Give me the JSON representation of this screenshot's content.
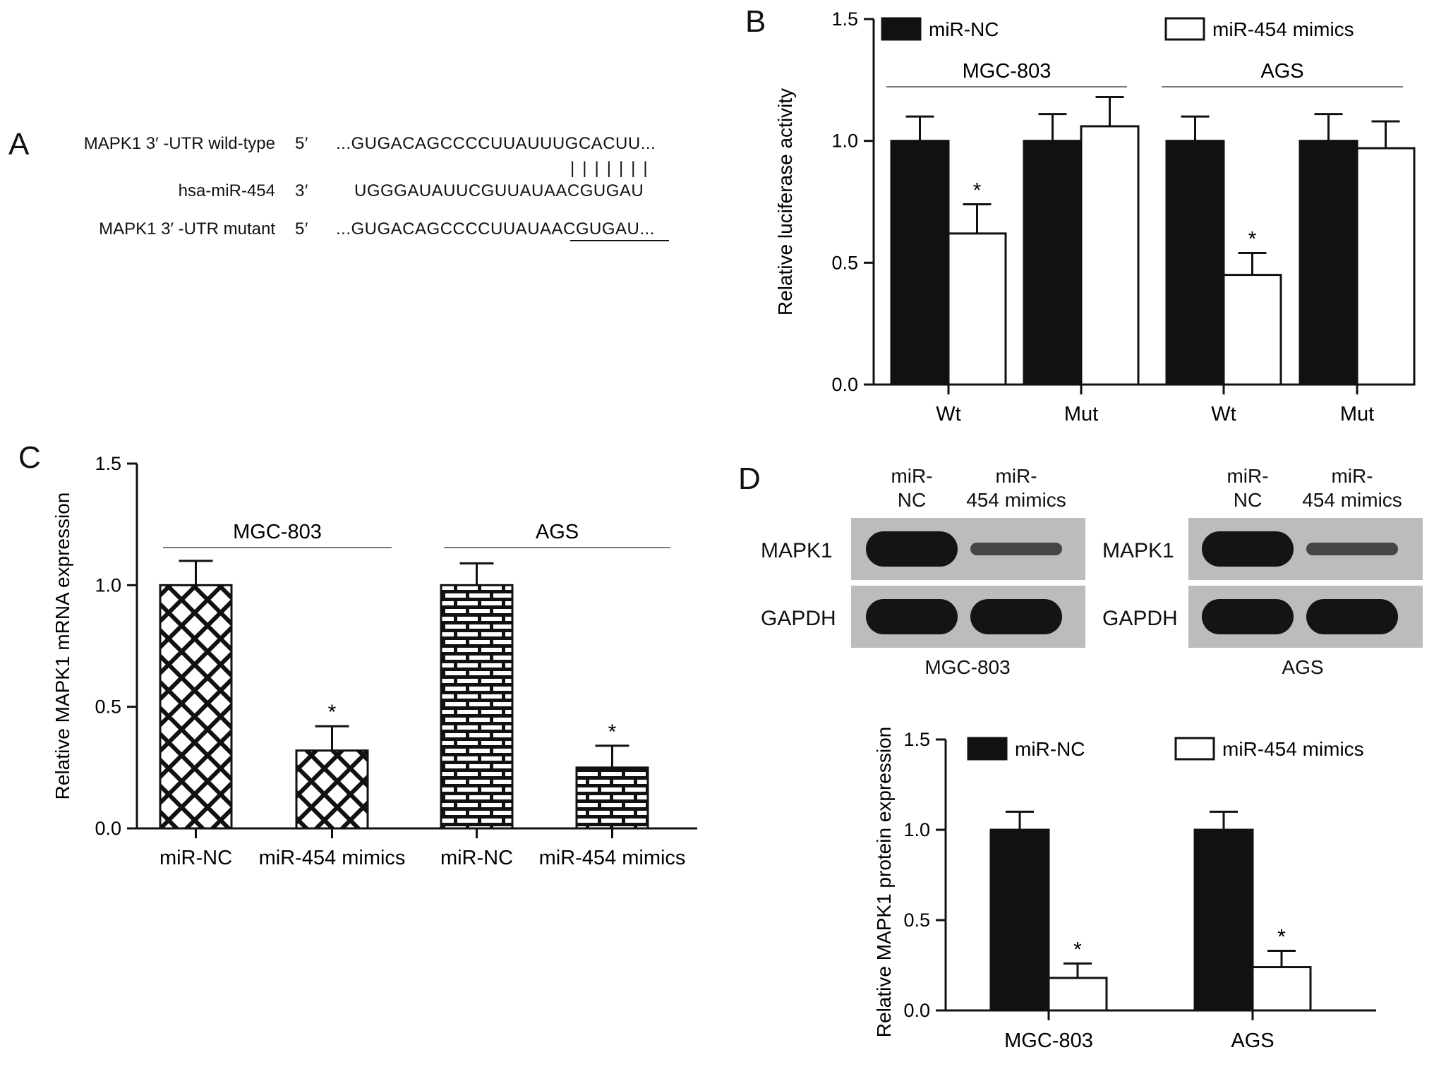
{
  "panels": {
    "A": {
      "letter": "A",
      "rows": [
        {
          "label": "MAPK1 3′ -UTR wild-type",
          "end": "5′",
          "sequence": "...GUGACAGCCCCUUAUUUGCACUU..."
        },
        {
          "label": "hsa-miR-454",
          "end": "3′",
          "sequence": "UGGGAUAUUCGUUAUAACGUGAU"
        },
        {
          "label": "MAPK1 3′ -UTR mutant",
          "end": "5′",
          "sequence": "...GUGACAGCCCCUUAUAACGUGAU..."
        }
      ],
      "pairing_lines": "|||||||",
      "mutant_underline_bases": "AACGUGA"
    },
    "B": {
      "letter": "B"
    },
    "C": {
      "letter": "C"
    },
    "D": {
      "letter": "D",
      "blots": [
        {
          "cell_line": "MGC-803",
          "lanes": [
            "miR-\nNC",
            "miR-\n454 mimics"
          ],
          "rows": [
            "MAPK1",
            "GAPDH"
          ],
          "band_intensity": {
            "MAPK1": [
              1.0,
              0.35
            ],
            "GAPDH": [
              1.0,
              1.0
            ]
          }
        },
        {
          "cell_line": "AGS",
          "lanes": [
            "miR-\nNC",
            "miR-\n454 mimics"
          ],
          "rows": [
            "MAPK1",
            "GAPDH"
          ],
          "band_intensity": {
            "MAPK1": [
              1.0,
              0.35
            ],
            "GAPDH": [
              1.0,
              1.0
            ]
          }
        }
      ]
    }
  },
  "colors": {
    "nc_fill": "#111111",
    "mimic_fill": "#ffffff",
    "axis": "#111111",
    "blot_bg": "#bcbcbc",
    "band": "#141414"
  },
  "chart_data": [
    {
      "panel": "B",
      "type": "bar",
      "ylabel": "Relative luciferase activity",
      "ylim": [
        0,
        1.5
      ],
      "yticks": [
        "0.0",
        "0.5",
        "1.0",
        "1.5"
      ],
      "categories": [
        "Wt",
        "Mut",
        "Wt",
        "Mut"
      ],
      "groups": [
        {
          "label": "MGC-803",
          "categories": [
            0,
            1
          ]
        },
        {
          "label": "AGS",
          "categories": [
            2,
            3
          ]
        }
      ],
      "legend": {
        "position": "top",
        "entries": [
          "miR-NC",
          "miR-454 mimics"
        ]
      },
      "series": [
        {
          "name": "miR-NC",
          "values": [
            1.0,
            1.0,
            1.0,
            1.0
          ],
          "errors": [
            0.1,
            0.11,
            0.1,
            0.11
          ],
          "fill": "solid"
        },
        {
          "name": "miR-454 mimics",
          "values": [
            0.62,
            1.06,
            0.45,
            0.97
          ],
          "errors": [
            0.12,
            0.12,
            0.09,
            0.11
          ],
          "fill": "open"
        }
      ],
      "significance": {
        "marker": "*",
        "points": [
          [
            1,
            0
          ],
          [
            1,
            2
          ]
        ]
      }
    },
    {
      "panel": "C",
      "type": "bar",
      "ylabel": "Relative MAPK1 mRNA expression",
      "ylim": [
        0,
        1.5
      ],
      "yticks": [
        "0.0",
        "0.5",
        "1.0",
        "1.5"
      ],
      "categories": [
        "miR-NC",
        "miR-454 mimics",
        "miR-NC",
        "miR-454 mimics"
      ],
      "groups": [
        {
          "label": "MGC-803",
          "categories": [
            0,
            1
          ]
        },
        {
          "label": "AGS",
          "categories": [
            2,
            3
          ]
        }
      ],
      "values": [
        1.0,
        0.32,
        1.0,
        0.25
      ],
      "errors": [
        0.1,
        0.1,
        0.09,
        0.09
      ],
      "patterns": [
        "crosshatch",
        "crosshatch",
        "brick",
        "brick"
      ],
      "significance": {
        "marker": "*",
        "indices": [
          1,
          3
        ]
      }
    },
    {
      "panel": "D",
      "type": "bar",
      "ylabel": "Relative MAPK1 protein expression",
      "ylim": [
        0,
        1.5
      ],
      "yticks": [
        "0.0",
        "0.5",
        "1.0",
        "1.5"
      ],
      "categories": [
        "MGC-803",
        "AGS"
      ],
      "legend": {
        "position": "top",
        "entries": [
          "miR-NC",
          "miR-454 mimics"
        ]
      },
      "series": [
        {
          "name": "miR-NC",
          "values": [
            1.0,
            1.0
          ],
          "errors": [
            0.1,
            0.1
          ],
          "fill": "solid"
        },
        {
          "name": "miR-454 mimics",
          "values": [
            0.18,
            0.24
          ],
          "errors": [
            0.08,
            0.09
          ],
          "fill": "open"
        }
      ],
      "significance": {
        "marker": "*",
        "points": [
          [
            1,
            0
          ],
          [
            1,
            1
          ]
        ]
      }
    }
  ]
}
